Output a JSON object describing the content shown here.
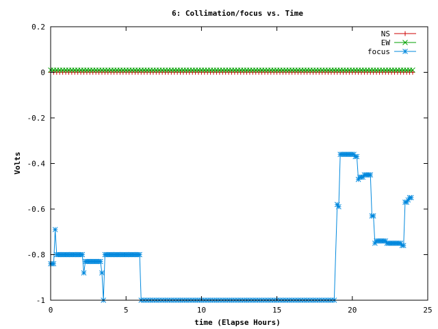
{
  "chart_data": {
    "type": "line",
    "title": "6: Collimation/focus vs. Time",
    "xlabel": "time (Elapse Hours)",
    "ylabel": "Volts",
    "xlim": [
      0,
      25
    ],
    "ylim": [
      -1,
      0.2
    ],
    "x_ticks": [
      0,
      5,
      10,
      15,
      20,
      25
    ],
    "x_tick_labels": [
      "0",
      "5",
      "10",
      "15",
      "20",
      "25"
    ],
    "y_ticks": [
      0.2,
      0,
      -0.2,
      -0.4,
      -0.6,
      -0.8,
      -1
    ],
    "y_tick_labels": [
      "0.2",
      "0",
      "-0.2",
      "-0.4",
      "-0.6",
      "-0.8",
      "-1"
    ],
    "grid": false,
    "legend_position": "top-right",
    "series": [
      {
        "name": "NS",
        "color": "#cc0000",
        "marker": "plus",
        "x_range": [
          0,
          24
        ],
        "x_step": 0.2,
        "constant_value": 0.0
      },
      {
        "name": "EW",
        "color": "#00a000",
        "marker": "cross",
        "x_range": [
          0,
          24
        ],
        "x_step": 0.2,
        "constant_value": 0.01
      },
      {
        "name": "focus",
        "color": "#0088dd",
        "marker": "star",
        "points": [
          [
            0.0,
            -0.84
          ],
          [
            0.1,
            -0.84
          ],
          [
            0.2,
            -0.84
          ],
          [
            0.3,
            -0.69
          ],
          [
            0.4,
            -0.8
          ],
          [
            0.5,
            -0.8
          ],
          [
            0.6,
            -0.8
          ],
          [
            0.7,
            -0.8
          ],
          [
            0.8,
            -0.8
          ],
          [
            0.9,
            -0.8
          ],
          [
            1.0,
            -0.8
          ],
          [
            1.1,
            -0.8
          ],
          [
            1.2,
            -0.8
          ],
          [
            1.3,
            -0.8
          ],
          [
            1.4,
            -0.8
          ],
          [
            1.5,
            -0.8
          ],
          [
            1.6,
            -0.8
          ],
          [
            1.7,
            -0.8
          ],
          [
            1.8,
            -0.8
          ],
          [
            1.9,
            -0.8
          ],
          [
            2.0,
            -0.8
          ],
          [
            2.1,
            -0.8
          ],
          [
            2.2,
            -0.88
          ],
          [
            2.3,
            -0.83
          ],
          [
            2.4,
            -0.83
          ],
          [
            2.5,
            -0.83
          ],
          [
            2.6,
            -0.83
          ],
          [
            2.7,
            -0.83
          ],
          [
            2.8,
            -0.83
          ],
          [
            2.9,
            -0.83
          ],
          [
            3.0,
            -0.83
          ],
          [
            3.1,
            -0.83
          ],
          [
            3.2,
            -0.83
          ],
          [
            3.3,
            -0.83
          ],
          [
            3.4,
            -0.88
          ],
          [
            3.5,
            -1.0
          ],
          [
            3.6,
            -0.8
          ],
          [
            3.7,
            -0.8
          ],
          [
            3.8,
            -0.8
          ],
          [
            3.9,
            -0.8
          ],
          [
            4.0,
            -0.8
          ],
          [
            4.1,
            -0.8
          ],
          [
            4.2,
            -0.8
          ],
          [
            4.3,
            -0.8
          ],
          [
            4.4,
            -0.8
          ],
          [
            4.5,
            -0.8
          ],
          [
            4.6,
            -0.8
          ],
          [
            4.7,
            -0.8
          ],
          [
            4.8,
            -0.8
          ],
          [
            4.9,
            -0.8
          ],
          [
            5.0,
            -0.8
          ],
          [
            5.1,
            -0.8
          ],
          [
            5.2,
            -0.8
          ],
          [
            5.3,
            -0.8
          ],
          [
            5.4,
            -0.8
          ],
          [
            5.5,
            -0.8
          ],
          [
            5.6,
            -0.8
          ],
          [
            5.7,
            -0.8
          ],
          [
            5.8,
            -0.8
          ],
          [
            5.9,
            -0.8
          ],
          [
            6.0,
            -1.0
          ],
          [
            6.2,
            -1.0
          ],
          [
            6.4,
            -1.0
          ],
          [
            6.6,
            -1.0
          ],
          [
            6.8,
            -1.0
          ],
          [
            7.0,
            -1.0
          ],
          [
            7.2,
            -1.0
          ],
          [
            7.4,
            -1.0
          ],
          [
            7.6,
            -1.0
          ],
          [
            7.8,
            -1.0
          ],
          [
            8.0,
            -1.0
          ],
          [
            8.2,
            -1.0
          ],
          [
            8.4,
            -1.0
          ],
          [
            8.6,
            -1.0
          ],
          [
            8.8,
            -1.0
          ],
          [
            9.0,
            -1.0
          ],
          [
            9.2,
            -1.0
          ],
          [
            9.4,
            -1.0
          ],
          [
            9.6,
            -1.0
          ],
          [
            9.8,
            -1.0
          ],
          [
            10.0,
            -1.0
          ],
          [
            10.2,
            -1.0
          ],
          [
            10.4,
            -1.0
          ],
          [
            10.6,
            -1.0
          ],
          [
            10.8,
            -1.0
          ],
          [
            11.0,
            -1.0
          ],
          [
            11.2,
            -1.0
          ],
          [
            11.4,
            -1.0
          ],
          [
            11.6,
            -1.0
          ],
          [
            11.8,
            -1.0
          ],
          [
            12.0,
            -1.0
          ],
          [
            12.2,
            -1.0
          ],
          [
            12.4,
            -1.0
          ],
          [
            12.6,
            -1.0
          ],
          [
            12.8,
            -1.0
          ],
          [
            13.0,
            -1.0
          ],
          [
            13.2,
            -1.0
          ],
          [
            13.4,
            -1.0
          ],
          [
            13.6,
            -1.0
          ],
          [
            13.8,
            -1.0
          ],
          [
            14.0,
            -1.0
          ],
          [
            14.2,
            -1.0
          ],
          [
            14.4,
            -1.0
          ],
          [
            14.6,
            -1.0
          ],
          [
            14.8,
            -1.0
          ],
          [
            15.0,
            -1.0
          ],
          [
            15.2,
            -1.0
          ],
          [
            15.4,
            -1.0
          ],
          [
            15.6,
            -1.0
          ],
          [
            15.8,
            -1.0
          ],
          [
            16.0,
            -1.0
          ],
          [
            16.2,
            -1.0
          ],
          [
            16.4,
            -1.0
          ],
          [
            16.6,
            -1.0
          ],
          [
            16.8,
            -1.0
          ],
          [
            17.0,
            -1.0
          ],
          [
            17.2,
            -1.0
          ],
          [
            17.4,
            -1.0
          ],
          [
            17.6,
            -1.0
          ],
          [
            17.8,
            -1.0
          ],
          [
            18.0,
            -1.0
          ],
          [
            18.2,
            -1.0
          ],
          [
            18.4,
            -1.0
          ],
          [
            18.6,
            -1.0
          ],
          [
            18.8,
            -1.0
          ],
          [
            19.0,
            -0.58
          ],
          [
            19.1,
            -0.59
          ],
          [
            19.2,
            -0.36
          ],
          [
            19.3,
            -0.36
          ],
          [
            19.4,
            -0.36
          ],
          [
            19.5,
            -0.36
          ],
          [
            19.6,
            -0.36
          ],
          [
            19.7,
            -0.36
          ],
          [
            19.8,
            -0.36
          ],
          [
            19.9,
            -0.36
          ],
          [
            20.0,
            -0.36
          ],
          [
            20.1,
            -0.36
          ],
          [
            20.2,
            -0.37
          ],
          [
            20.3,
            -0.37
          ],
          [
            20.4,
            -0.47
          ],
          [
            20.5,
            -0.46
          ],
          [
            20.6,
            -0.46
          ],
          [
            20.7,
            -0.46
          ],
          [
            20.8,
            -0.45
          ],
          [
            20.9,
            -0.45
          ],
          [
            21.0,
            -0.45
          ],
          [
            21.1,
            -0.45
          ],
          [
            21.2,
            -0.45
          ],
          [
            21.3,
            -0.63
          ],
          [
            21.4,
            -0.63
          ],
          [
            21.5,
            -0.75
          ],
          [
            21.6,
            -0.74
          ],
          [
            21.7,
            -0.74
          ],
          [
            21.8,
            -0.74
          ],
          [
            21.9,
            -0.74
          ],
          [
            22.0,
            -0.74
          ],
          [
            22.1,
            -0.74
          ],
          [
            22.2,
            -0.74
          ],
          [
            22.3,
            -0.75
          ],
          [
            22.4,
            -0.75
          ],
          [
            22.5,
            -0.75
          ],
          [
            22.6,
            -0.75
          ],
          [
            22.7,
            -0.75
          ],
          [
            22.8,
            -0.75
          ],
          [
            22.9,
            -0.75
          ],
          [
            23.0,
            -0.75
          ],
          [
            23.1,
            -0.75
          ],
          [
            23.2,
            -0.75
          ],
          [
            23.3,
            -0.76
          ],
          [
            23.4,
            -0.76
          ],
          [
            23.5,
            -0.57
          ],
          [
            23.6,
            -0.57
          ],
          [
            23.7,
            -0.56
          ],
          [
            23.8,
            -0.55
          ],
          [
            23.9,
            -0.55
          ]
        ]
      }
    ]
  }
}
